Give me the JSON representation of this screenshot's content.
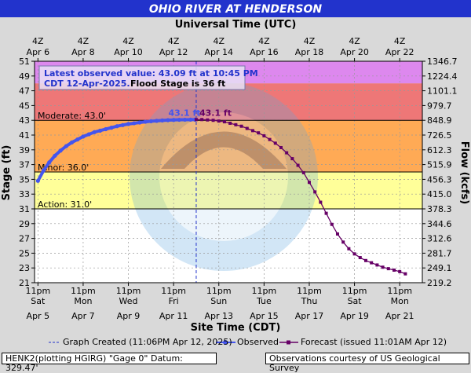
{
  "header": {
    "title": "OHIO RIVER AT HENDERSON",
    "top_axis_title": "Universal Time (UTC)"
  },
  "latest": {
    "line1": "Latest observed value: 43.09 ft at 10:45 PM",
    "line2": "CDT 12-Apr-2025.",
    "flood_note": "Flood Stage is 36 ft"
  },
  "footer": {
    "graph_created": "Graph Created (11:06PM Apr 12, 2025)",
    "observed_label": "Observed",
    "forecast_label": "Forecast (issued 11:01AM Apr 12)",
    "datum": "HENK2(plotting HGIRG) \"Gage 0\" Datum: 329.47'",
    "courtesy": "Observations courtesy of US Geological Survey"
  },
  "colors": {
    "title_bg": "#2233cc",
    "observed": "#4455ee",
    "forecast": "#660066",
    "zone_record": "#dd88ee",
    "zone_major": "#ee7777",
    "zone_moderate": "#ffaa55",
    "zone_minor": "#ffff99",
    "zone_action": "#ffffff"
  },
  "chart_data": {
    "type": "line",
    "title": "OHIO RIVER AT HENDERSON",
    "xlabel": "Site Time (CDT)",
    "ylabel": "Stage (ft)",
    "y2label": "Flow (kcfs)",
    "x_top_label": "Universal Time (UTC)",
    "ylim": [
      21,
      51
    ],
    "y_ticks": [
      21,
      23,
      25,
      27,
      29,
      31,
      33,
      35,
      37,
      39,
      41,
      43,
      45,
      47,
      49,
      51
    ],
    "flow_ticks": [
      "219.2",
      "249.1",
      "281.7",
      "312.6",
      "344.6",
      "378.3",
      "415.0",
      "456.3",
      "515.9",
      "612.3",
      "726.5",
      "848.9",
      "979.7",
      "1101.1",
      "1224.4",
      "1346.7"
    ],
    "x_ticks_bottom": [
      {
        "day": 0,
        "line1": "11pm",
        "line2": "Sat",
        "line3": "Apr 5"
      },
      {
        "day": 2,
        "line1": "11pm",
        "line2": "Mon",
        "line3": "Apr 7"
      },
      {
        "day": 4,
        "line1": "11pm",
        "line2": "Wed",
        "line3": "Apr 9"
      },
      {
        "day": 6,
        "line1": "11pm",
        "line2": "Fri",
        "line3": "Apr 11"
      },
      {
        "day": 8,
        "line1": "11pm",
        "line2": "Sun",
        "line3": "Apr 13"
      },
      {
        "day": 10,
        "line1": "11pm",
        "line2": "Tue",
        "line3": "Apr 15"
      },
      {
        "day": 12,
        "line1": "11pm",
        "line2": "Thu",
        "line3": "Apr 17"
      },
      {
        "day": 14,
        "line1": "11pm",
        "line2": "Sat",
        "line3": "Apr 19"
      },
      {
        "day": 16,
        "line1": "11pm",
        "line2": "Mon",
        "line3": "Apr 21"
      }
    ],
    "x_ticks_top": [
      {
        "day": 0,
        "line1": "4Z",
        "line2": "Apr 6"
      },
      {
        "day": 2,
        "line1": "4Z",
        "line2": "Apr 8"
      },
      {
        "day": 4,
        "line1": "4Z",
        "line2": "Apr 10"
      },
      {
        "day": 6,
        "line1": "4Z",
        "line2": "Apr 12"
      },
      {
        "day": 8,
        "line1": "4Z",
        "line2": "Apr 14"
      },
      {
        "day": 10,
        "line1": "4Z",
        "line2": "Apr 16"
      },
      {
        "day": 12,
        "line1": "4Z",
        "line2": "Apr 18"
      },
      {
        "day": 14,
        "line1": "4Z",
        "line2": "Apr 20"
      },
      {
        "day": 16,
        "line1": "4Z",
        "line2": "Apr 22"
      }
    ],
    "stages": [
      {
        "name": "Moderate: 43.0'",
        "value": 43
      },
      {
        "name": "Minor: 36.0'",
        "value": 36
      },
      {
        "name": "Action: 31.0'",
        "value": 31
      }
    ],
    "zones": [
      {
        "from": 48,
        "to": 51,
        "color": "#dd88ee"
      },
      {
        "from": 43,
        "to": 48,
        "color": "#ee7777"
      },
      {
        "from": 36,
        "to": 43,
        "color": "#ffaa55"
      },
      {
        "from": 31,
        "to": 36,
        "color": "#ffff99"
      },
      {
        "from": 21,
        "to": 31,
        "color": "#ffffff"
      }
    ],
    "graph_created_day": 7.0,
    "observed_peak_label": "43.1 ft",
    "forecast_start_label": "43.1 ft",
    "series": [
      {
        "name": "Observed",
        "color": "#4455ee",
        "x": [
          0.0,
          0.25,
          0.5,
          0.75,
          1.0,
          1.25,
          1.5,
          1.75,
          2.0,
          2.25,
          2.5,
          2.75,
          3.0,
          3.25,
          3.5,
          3.75,
          4.0,
          4.25,
          4.5,
          4.75,
          5.0,
          5.25,
          5.5,
          5.75,
          6.0,
          6.25,
          6.5,
          6.75,
          6.95
        ],
        "y": [
          34.8,
          36.2,
          37.3,
          38.2,
          38.9,
          39.5,
          40.0,
          40.4,
          40.8,
          41.1,
          41.4,
          41.6,
          41.8,
          42.0,
          42.2,
          42.35,
          42.5,
          42.6,
          42.7,
          42.8,
          42.87,
          42.93,
          42.98,
          43.02,
          43.05,
          43.07,
          43.08,
          43.09,
          43.09
        ]
      },
      {
        "name": "Forecast",
        "color": "#660066",
        "x": [
          7.0,
          7.25,
          7.5,
          7.75,
          8.0,
          8.25,
          8.5,
          8.75,
          9.0,
          9.25,
          9.5,
          9.75,
          10.0,
          10.25,
          10.5,
          10.75,
          11.0,
          11.25,
          11.5,
          11.75,
          12.0,
          12.25,
          12.5,
          12.75,
          13.0,
          13.25,
          13.5,
          13.75,
          14.0,
          14.25,
          14.5,
          14.75,
          15.0,
          15.25,
          15.5,
          15.75,
          16.0,
          16.25
        ],
        "y": [
          43.1,
          43.1,
          43.05,
          43.0,
          42.9,
          42.8,
          42.6,
          42.4,
          42.2,
          41.9,
          41.6,
          41.3,
          40.9,
          40.4,
          39.9,
          39.3,
          38.6,
          37.8,
          36.9,
          35.9,
          34.6,
          33.3,
          31.9,
          30.4,
          28.9,
          27.6,
          26.5,
          25.6,
          24.9,
          24.4,
          24.0,
          23.7,
          23.4,
          23.1,
          22.9,
          22.7,
          22.5,
          22.2
        ]
      }
    ]
  }
}
